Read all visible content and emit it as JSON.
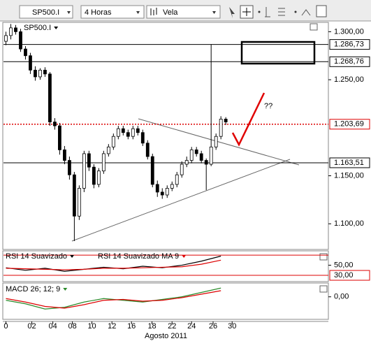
{
  "toolbar": {
    "symbol": "SP500.I",
    "timeframe": "4 Horas",
    "chart_style": "Vela"
  },
  "chart_data": [
    {
      "type": "candlestick",
      "title": "SP500.I",
      "open": [
        1290,
        1296,
        1304,
        1300,
        1282,
        1275,
        1260,
        1253,
        1260,
        1256,
        1206,
        1202,
        1177,
        1166,
        1151,
        1108,
        1137,
        1173,
        1159,
        1141,
        1155,
        1173,
        1180,
        1191,
        1199,
        1195,
        1191,
        1199,
        1195,
        1184,
        1170,
        1141,
        1133,
        1130,
        1137,
        1141,
        1151,
        1162,
        1166,
        1177,
        1173,
        1166,
        1162,
        1180,
        1191,
        1209
      ],
      "high": [
        1300,
        1308,
        1307,
        1303,
        1285,
        1278,
        1264,
        1262,
        1263,
        1258,
        1210,
        1205,
        1181,
        1170,
        1154,
        1140,
        1176,
        1176,
        1162,
        1158,
        1176,
        1183,
        1194,
        1202,
        1202,
        1198,
        1202,
        1202,
        1198,
        1187,
        1173,
        1145,
        1137,
        1140,
        1144,
        1154,
        1165,
        1170,
        1180,
        1180,
        1176,
        1168,
        1287,
        1194,
        1212,
        1211
      ],
      "low": [
        1286,
        1292,
        1297,
        1279,
        1271,
        1256,
        1249,
        1250,
        1253,
        1202,
        1198,
        1172,
        1162,
        1146,
        1082,
        1104,
        1133,
        1155,
        1137,
        1138,
        1152,
        1170,
        1177,
        1188,
        1192,
        1188,
        1188,
        1192,
        1181,
        1167,
        1138,
        1128,
        1126,
        1127,
        1134,
        1138,
        1148,
        1159,
        1163,
        1170,
        1163,
        1135,
        1160,
        1177,
        1188,
        1203
      ],
      "close": [
        1296,
        1304,
        1300,
        1282,
        1275,
        1260,
        1253,
        1260,
        1256,
        1206,
        1202,
        1177,
        1166,
        1151,
        1108,
        1137,
        1173,
        1159,
        1141,
        1155,
        1173,
        1180,
        1191,
        1199,
        1195,
        1191,
        1199,
        1195,
        1184,
        1170,
        1141,
        1133,
        1130,
        1137,
        1141,
        1151,
        1162,
        1166,
        1177,
        1173,
        1166,
        1162,
        1180,
        1191,
        1209,
        1206
      ],
      "up_color": "#ffffff",
      "down_color": "#000000",
      "xlim": [
        -0.5,
        66
      ],
      "xticks": [
        {
          "value": 0,
          "label": "0"
        },
        {
          "value": 5.3,
          "label": "02"
        },
        {
          "value": 9.6,
          "label": "04"
        },
        {
          "value": 13.6,
          "label": "08"
        },
        {
          "value": 17.6,
          "label": "10"
        },
        {
          "value": 21.7,
          "label": "12"
        },
        {
          "value": 25.7,
          "label": "16"
        },
        {
          "value": 29.9,
          "label": "18"
        },
        {
          "value": 34,
          "label": "22"
        },
        {
          "value": 38,
          "label": "24"
        },
        {
          "value": 42.4,
          "label": "26"
        },
        {
          "value": 46.3,
          "label": "30"
        }
      ],
      "x_title": "Agosto 2011",
      "ylim": [
        1074,
        1309
      ],
      "yticks": [
        {
          "value": 1100,
          "label": "1.100,00"
        },
        {
          "value": 1150,
          "label": "1.150,00"
        },
        {
          "value": 1250,
          "label": "1.250,00"
        },
        {
          "value": 1300,
          "label": "1.300,00"
        }
      ],
      "levels": [
        {
          "value": 1286.73,
          "label": "1.286,73",
          "color": "#000000"
        },
        {
          "value": 1268.76,
          "label": "1.268,76",
          "color": "#000000"
        },
        {
          "value": 1203.69,
          "label": "1.203,69",
          "color": "#dd0000",
          "style": "dotted"
        },
        {
          "value": 1163.51,
          "label": "1.163,51",
          "color": "#000000"
        }
      ],
      "annotation": "??"
    },
    {
      "type": "line",
      "x": [
        0,
        4,
        8,
        12,
        16,
        20,
        24,
        28,
        32,
        36,
        40,
        44
      ],
      "series": [
        {
          "name": "RSI 14 Suavizado",
          "color": "#000000",
          "values": [
            45,
            40,
            44,
            38,
            42,
            46,
            43,
            48,
            45,
            50,
            58,
            68
          ]
        },
        {
          "name": "RSI 14 Suavizado MA 9",
          "color": "#dd0000",
          "values": [
            44,
            43,
            42,
            41,
            42,
            44,
            44,
            45,
            46,
            47,
            52,
            60
          ]
        }
      ],
      "xlim": [
        -0.5,
        66
      ],
      "ylim": [
        19,
        77
      ],
      "yticks": [
        {
          "value": 50,
          "label": "50,00"
        }
      ],
      "levels": [
        {
          "value": 70,
          "color": "#dd0000"
        },
        {
          "value": 30,
          "label": "30,00",
          "color": "#dd0000"
        }
      ]
    },
    {
      "type": "line",
      "title": "MACD 26; 12; 9",
      "x": [
        0,
        4,
        8,
        12,
        16,
        20,
        24,
        28,
        32,
        36,
        40,
        44
      ],
      "series": [
        {
          "color": "#2a8a2a",
          "values": [
            -4,
            -8,
            -14,
            -12,
            -6,
            -2,
            -4,
            -6,
            -3,
            0,
            5,
            10
          ]
        },
        {
          "color": "#dd0000",
          "values": [
            -2,
            -6,
            -11,
            -13,
            -9,
            -4,
            -3,
            -5,
            -4,
            -1,
            3,
            7
          ]
        }
      ],
      "xlim": [
        -0.5,
        66
      ],
      "ylim": [
        -25,
        15
      ],
      "yticks": [
        {
          "value": 0,
          "label": "0,00"
        }
      ]
    }
  ]
}
